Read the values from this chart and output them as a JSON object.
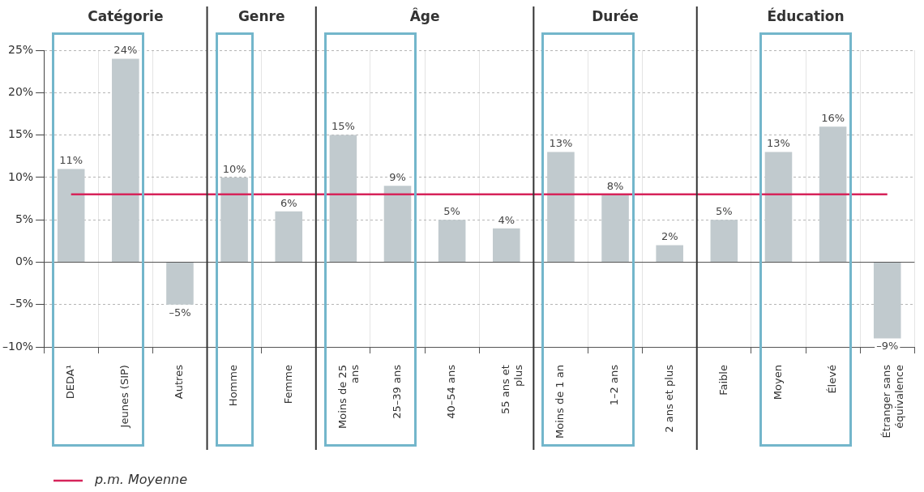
{
  "chart_data": {
    "type": "bar",
    "categories": [
      "DEDA¹",
      "Jeunes (SIP)",
      "Autres",
      "Homme",
      "Femme",
      "Moins de 25 ans",
      "25–39 ans",
      "40–54 ans",
      "55 ans et plus",
      "Moins de 1 an",
      "1–2 ans",
      "2 ans et plus",
      "Faible",
      "Moyen",
      "Élevé",
      "Étranger sans équivalence"
    ],
    "values": [
      11,
      24,
      -5,
      10,
      6,
      15,
      9,
      5,
      4,
      13,
      8,
      2,
      5,
      13,
      16,
      -9
    ],
    "value_labels": [
      "11%",
      "24%",
      "–5%",
      "10%",
      "6%",
      "15%",
      "9%",
      "5%",
      "4%",
      "13%",
      "8%",
      "2%",
      "5%",
      "13%",
      "16%",
      "–9%"
    ],
    "color": "#c1cace",
    "ylim": [
      -10,
      25
    ],
    "yticks": [
      {
        "value": -10,
        "label": "–10%"
      },
      {
        "value": -5,
        "label": "–5%"
      },
      {
        "value": 0,
        "label": "0%"
      },
      {
        "value": 5,
        "label": "5%"
      },
      {
        "value": 10,
        "label": "10%"
      },
      {
        "value": 15,
        "label": "15%"
      },
      {
        "value": 20,
        "label": "20%"
      },
      {
        "value": 25,
        "label": "25%"
      }
    ],
    "grid": true,
    "ref_lines": [
      {
        "axis": "y",
        "value": 8,
        "label": "p.m. Moyenne",
        "color": "#d6245a"
      }
    ],
    "annotations": [
      "Catégorie",
      "Genre",
      "Âge",
      "Durée",
      "Éducation"
    ]
  }
}
